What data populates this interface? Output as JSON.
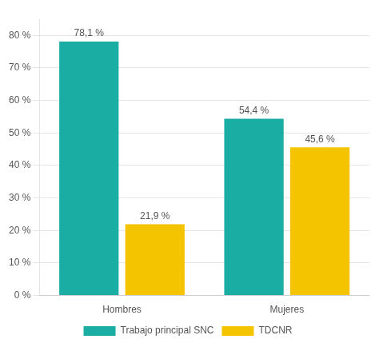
{
  "chart_data": {
    "type": "bar",
    "categories": [
      "Hombres",
      "Mujeres"
    ],
    "series": [
      {
        "name": "Trabajo principal SNC",
        "color": "#1aada3",
        "values": [
          78.1,
          54.4
        ],
        "value_labels": [
          "78,1 %",
          "54,4 %"
        ]
      },
      {
        "name": "TDCNR",
        "color": "#f5c400",
        "values": [
          21.9,
          45.6
        ],
        "value_labels": [
          "21,9 %",
          "45,6 %"
        ]
      }
    ],
    "ylim": [
      0,
      85
    ],
    "yticks": [
      {
        "value": 0,
        "label": "0 %"
      },
      {
        "value": 10,
        "label": "10 %"
      },
      {
        "value": 20,
        "label": "20 %"
      },
      {
        "value": 30,
        "label": "30 %"
      },
      {
        "value": 40,
        "label": "40 %"
      },
      {
        "value": 50,
        "label": "50 %"
      },
      {
        "value": 60,
        "label": "60 %"
      },
      {
        "value": 70,
        "label": "70 %"
      },
      {
        "value": 80,
        "label": "80 %"
      }
    ],
    "grid": true,
    "legend": "bottom",
    "data_labels": true
  }
}
